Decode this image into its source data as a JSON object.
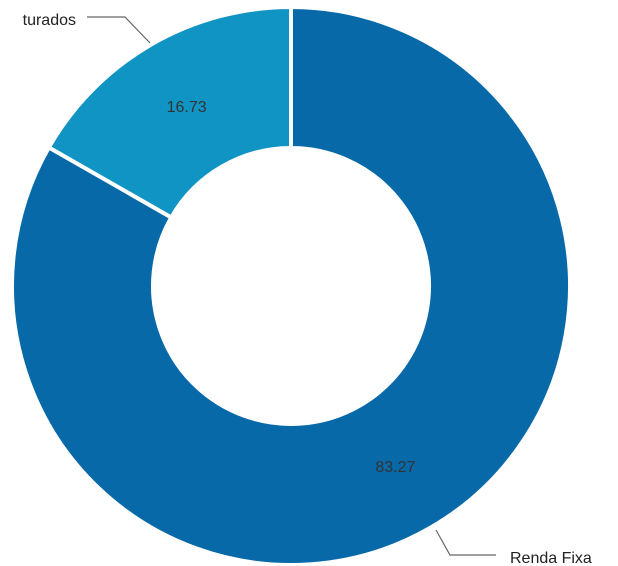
{
  "chart_data": {
    "type": "pie",
    "variant": "donut",
    "categories": [
      "turados",
      "Renda Fixa"
    ],
    "values": [
      16.73,
      83.27
    ],
    "value_labels": [
      "16.73",
      "83.27"
    ],
    "colors": [
      "#1094c4",
      "#0769a8"
    ],
    "legend": "outside labels with leader lines",
    "title": "",
    "background": "#ffffff",
    "label_color": "#333333",
    "leader_color": "#666666",
    "slice_border_color": "#ffffff"
  }
}
